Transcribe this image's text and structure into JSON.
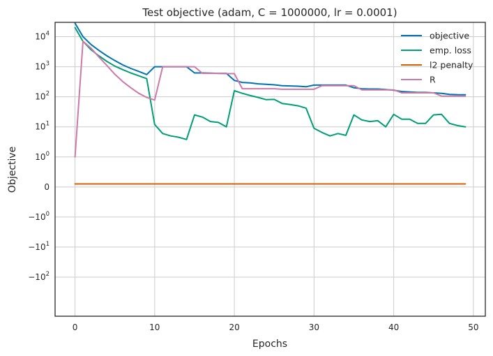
{
  "chart_data": {
    "type": "line",
    "title": "Test objective (adam, C = 1000000, lr = 0.0001)",
    "xlabel": "Epochs",
    "ylabel": "Objective",
    "y_scale": "symlog",
    "y_linthresh": 1,
    "xlim": [
      -2.5,
      51.5
    ],
    "ylim": [
      -2000,
      30000
    ],
    "grid": true,
    "legend_position": "top-right",
    "x_ticks": [
      {
        "value": 0,
        "label": "0"
      },
      {
        "value": 10,
        "label": "10"
      },
      {
        "value": 20,
        "label": "20"
      },
      {
        "value": 30,
        "label": "30"
      },
      {
        "value": 40,
        "label": "40"
      },
      {
        "value": 50,
        "label": "50"
      }
    ],
    "y_ticks": [
      {
        "value": 10000,
        "base": "10",
        "exp": "4",
        "sign": ""
      },
      {
        "value": 1000,
        "base": "10",
        "exp": "3",
        "sign": ""
      },
      {
        "value": 100,
        "base": "10",
        "exp": "2",
        "sign": ""
      },
      {
        "value": 10,
        "base": "10",
        "exp": "1",
        "sign": ""
      },
      {
        "value": 1,
        "base": "10",
        "exp": "0",
        "sign": ""
      },
      {
        "value": 0,
        "base": "0",
        "exp": "",
        "sign": ""
      },
      {
        "value": -1,
        "base": "10",
        "exp": "0",
        "sign": "−"
      },
      {
        "value": -10,
        "base": "10",
        "exp": "1",
        "sign": "−"
      },
      {
        "value": -100,
        "base": "10",
        "exp": "2",
        "sign": "−"
      }
    ],
    "x": [
      0,
      1,
      2,
      3,
      4,
      5,
      6,
      7,
      8,
      9,
      10,
      11,
      12,
      13,
      14,
      15,
      16,
      17,
      18,
      19,
      20,
      21,
      22,
      23,
      24,
      25,
      26,
      27,
      28,
      29,
      30,
      31,
      32,
      33,
      34,
      35,
      36,
      37,
      38,
      39,
      40,
      41,
      42,
      43,
      44,
      45,
      46,
      47,
      48,
      49
    ],
    "series": [
      {
        "name": "objective",
        "color": "#0072b2",
        "values": [
          28000,
          10000,
          5500,
          3500,
          2300,
          1600,
          1150,
          880,
          700,
          550,
          1000,
          1000,
          1000,
          1000,
          1000,
          620,
          620,
          610,
          600,
          600,
          350,
          300,
          290,
          270,
          260,
          250,
          235,
          230,
          225,
          215,
          245,
          245,
          245,
          245,
          245,
          200,
          185,
          182,
          182,
          175,
          165,
          150,
          145,
          140,
          140,
          135,
          130,
          120,
          118,
          117
        ]
      },
      {
        "name": "emp. loss",
        "color": "#009e73",
        "values": [
          20000,
          7000,
          3700,
          2300,
          1500,
          1050,
          800,
          620,
          500,
          400,
          12,
          6,
          5,
          4.5,
          3.8,
          25,
          21,
          15,
          14,
          10,
          160,
          130,
          110,
          95,
          80,
          82,
          60,
          55,
          50,
          42,
          9,
          6.5,
          5,
          6,
          5.2,
          25,
          17,
          15,
          16,
          10,
          26,
          18,
          18,
          13,
          13,
          25,
          26,
          13,
          11,
          10
        ]
      },
      {
        "name": "l2 penalty",
        "color": "#d55e00",
        "values": [
          0.1,
          0.1,
          0.1,
          0.1,
          0.1,
          0.1,
          0.1,
          0.1,
          0.1,
          0.1,
          0.1,
          0.1,
          0.1,
          0.1,
          0.1,
          0.1,
          0.1,
          0.1,
          0.1,
          0.1,
          0.1,
          0.1,
          0.1,
          0.1,
          0.1,
          0.1,
          0.1,
          0.1,
          0.1,
          0.1,
          0.1,
          0.1,
          0.1,
          0.1,
          0.1,
          0.1,
          0.1,
          0.1,
          0.1,
          0.1,
          0.1,
          0.1,
          0.1,
          0.1,
          0.1,
          0.1,
          0.1,
          0.1,
          0.1,
          0.1
        ]
      },
      {
        "name": "R",
        "color": "#cc79a7",
        "values": [
          1,
          7000,
          4200,
          2100,
          1100,
          560,
          320,
          200,
          130,
          95,
          78,
          1000,
          1000,
          1000,
          1000,
          1000,
          600,
          600,
          600,
          590,
          590,
          185,
          185,
          185,
          185,
          185,
          178,
          178,
          178,
          178,
          178,
          235,
          235,
          235,
          235,
          235,
          170,
          170,
          170,
          170,
          170,
          135,
          135,
          135,
          135,
          135,
          105,
          105,
          105,
          105
        ]
      }
    ]
  }
}
